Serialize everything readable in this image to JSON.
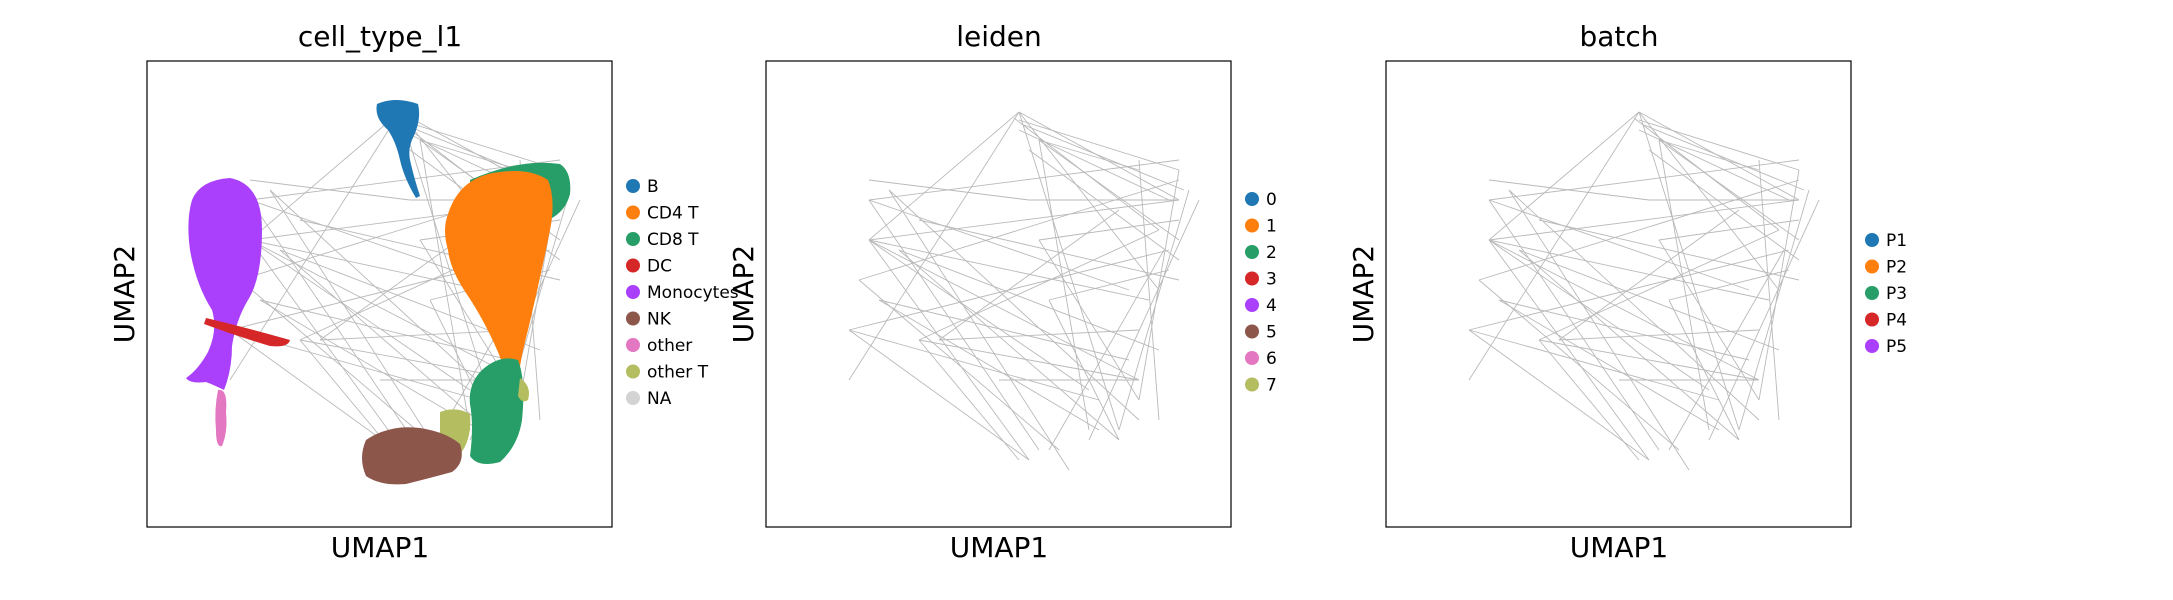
{
  "chart_data": [
    {
      "type": "scatter",
      "title": "cell_type_l1",
      "xlabel": "UMAP1",
      "ylabel": "UMAP2",
      "grid": false,
      "legend": "right",
      "series": [
        {
          "name": "B",
          "color": "#1f77b4"
        },
        {
          "name": "CD4 T",
          "color": "#ff7f0e"
        },
        {
          "name": "CD8 T",
          "color": "#279e68"
        },
        {
          "name": "DC",
          "color": "#d62728"
        },
        {
          "name": "Monocytes",
          "color": "#aa40fc"
        },
        {
          "name": "NK",
          "color": "#8c564b"
        },
        {
          "name": "other",
          "color": "#e377c2"
        },
        {
          "name": "other T",
          "color": "#b5bd61"
        },
        {
          "name": "NA",
          "color": "#d3d3d3"
        }
      ]
    },
    {
      "type": "scatter",
      "title": "leiden",
      "xlabel": "UMAP1",
      "ylabel": "UMAP2",
      "grid": false,
      "legend": "right",
      "series": [
        {
          "name": "0",
          "color": "#1f77b4"
        },
        {
          "name": "1",
          "color": "#ff7f0e"
        },
        {
          "name": "2",
          "color": "#279e68"
        },
        {
          "name": "3",
          "color": "#d62728"
        },
        {
          "name": "4",
          "color": "#aa40fc"
        },
        {
          "name": "5",
          "color": "#8c564b"
        },
        {
          "name": "6",
          "color": "#e377c2"
        },
        {
          "name": "7",
          "color": "#b5bd61"
        }
      ]
    },
    {
      "type": "scatter",
      "title": "batch",
      "xlabel": "UMAP1",
      "ylabel": "UMAP2",
      "grid": false,
      "legend": "right",
      "series": [
        {
          "name": "P1",
          "color": "#1f77b4"
        },
        {
          "name": "P2",
          "color": "#ff7f0e"
        },
        {
          "name": "P3",
          "color": "#279e68"
        },
        {
          "name": "P4",
          "color": "#d62728"
        },
        {
          "name": "P5",
          "color": "#aa40fc"
        }
      ]
    }
  ],
  "edge_color": "#808080"
}
